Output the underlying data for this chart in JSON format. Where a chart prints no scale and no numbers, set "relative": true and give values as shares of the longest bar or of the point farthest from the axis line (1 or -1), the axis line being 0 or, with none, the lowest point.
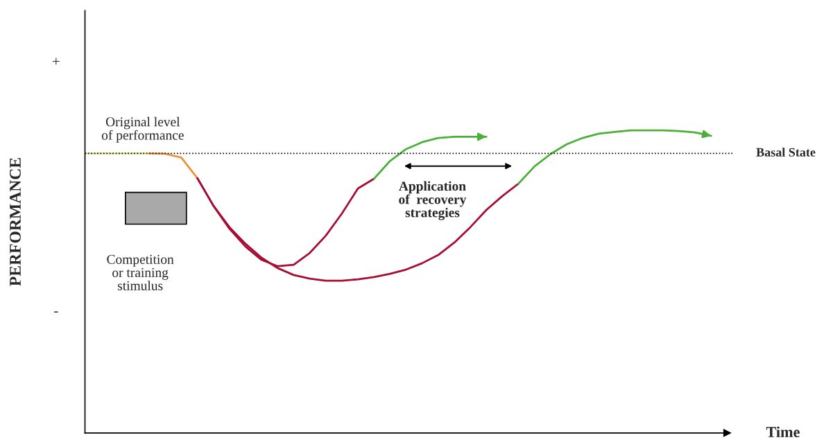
{
  "chart_data": {
    "type": "line",
    "relative": true,
    "xlabel": "Time",
    "ylabel": "PERFORMANCE",
    "categories": [
      null,
      null,
      null,
      null,
      null,
      null,
      null,
      null,
      null,
      null,
      null,
      null,
      null,
      null,
      null,
      null,
      null,
      null,
      null,
      null,
      null,
      null,
      null,
      null,
      null,
      null,
      null,
      null,
      null,
      null,
      null,
      null,
      null,
      null,
      null,
      null,
      null,
      null,
      null,
      null
    ],
    "series": [
      {
        "color": "#dfe38f",
        "values": [
          0.924,
          0.924,
          0.924,
          0.924,
          0.924,
          null,
          null,
          null,
          null,
          null,
          null,
          null,
          null,
          null,
          null,
          null,
          null,
          null,
          null,
          null,
          null,
          null,
          null,
          null,
          null,
          null,
          null,
          null,
          null,
          null,
          null,
          null,
          null,
          null,
          null,
          null,
          null,
          null,
          null,
          null
        ]
      },
      {
        "color": "#f0913a",
        "values": [
          null,
          null,
          null,
          null,
          0.924,
          0.923,
          0.91,
          0.842,
          null,
          null,
          null,
          null,
          null,
          null,
          null,
          null,
          null,
          null,
          null,
          null,
          null,
          null,
          null,
          null,
          null,
          null,
          null,
          null,
          null,
          null,
          null,
          null,
          null,
          null,
          null,
          null,
          null,
          null,
          null,
          null
        ]
      },
      {
        "color": "#a50d32",
        "values": [
          null,
          null,
          null,
          null,
          null,
          null,
          null,
          0.842,
          0.751,
          0.68,
          0.625,
          0.579,
          0.545,
          0.522,
          0.51,
          0.503,
          0.503,
          0.508,
          0.515,
          0.526,
          0.54,
          0.561,
          0.588,
          0.629,
          0.68,
          0.737,
          0.783,
          0.824,
          null,
          null,
          null,
          null,
          null,
          null,
          null,
          null,
          null,
          null,
          null,
          null
        ]
      },
      {
        "color": "#a50d32",
        "values": [
          null,
          null,
          null,
          null,
          null,
          null,
          null,
          0.842,
          0.751,
          0.675,
          0.616,
          0.572,
          0.551,
          0.556,
          0.595,
          0.652,
          0.725,
          0.808,
          0.84,
          null,
          null,
          null,
          null,
          null,
          null,
          null,
          null,
          null,
          null,
          null,
          null,
          null,
          null,
          null,
          null,
          null,
          null,
          null,
          null,
          null
        ]
      },
      {
        "color": "#4caf3a",
        "values": [
          null,
          null,
          null,
          null,
          null,
          null,
          null,
          null,
          null,
          null,
          null,
          null,
          null,
          null,
          null,
          null,
          null,
          null,
          0.84,
          0.899,
          0.938,
          0.961,
          0.975,
          0.979,
          0.979,
          0.979,
          null,
          null,
          null,
          null,
          null,
          null,
          null,
          null,
          null,
          null,
          null,
          null,
          null,
          null
        ]
      },
      {
        "color": "#4caf3a",
        "values": [
          null,
          null,
          null,
          null,
          null,
          null,
          null,
          null,
          null,
          null,
          null,
          null,
          null,
          null,
          null,
          null,
          null,
          null,
          null,
          null,
          null,
          null,
          null,
          null,
          null,
          null,
          null,
          0.824,
          0.881,
          0.922,
          0.954,
          0.975,
          0.989,
          0.995,
          1.0,
          1.0,
          1.0,
          0.998,
          0.993,
          0.982
        ]
      }
    ],
    "ref_lines": [
      {
        "axis": "y",
        "value": 0.924,
        "label": "Basal State",
        "color": "#000000",
        "line_style": "dotted"
      }
    ],
    "annotations": [
      "+",
      "-",
      "Original level\nof performance",
      "Competition\nor training\nstimulus",
      "Application\nof  recovery\nstrategies"
    ],
    "legend": false
  }
}
